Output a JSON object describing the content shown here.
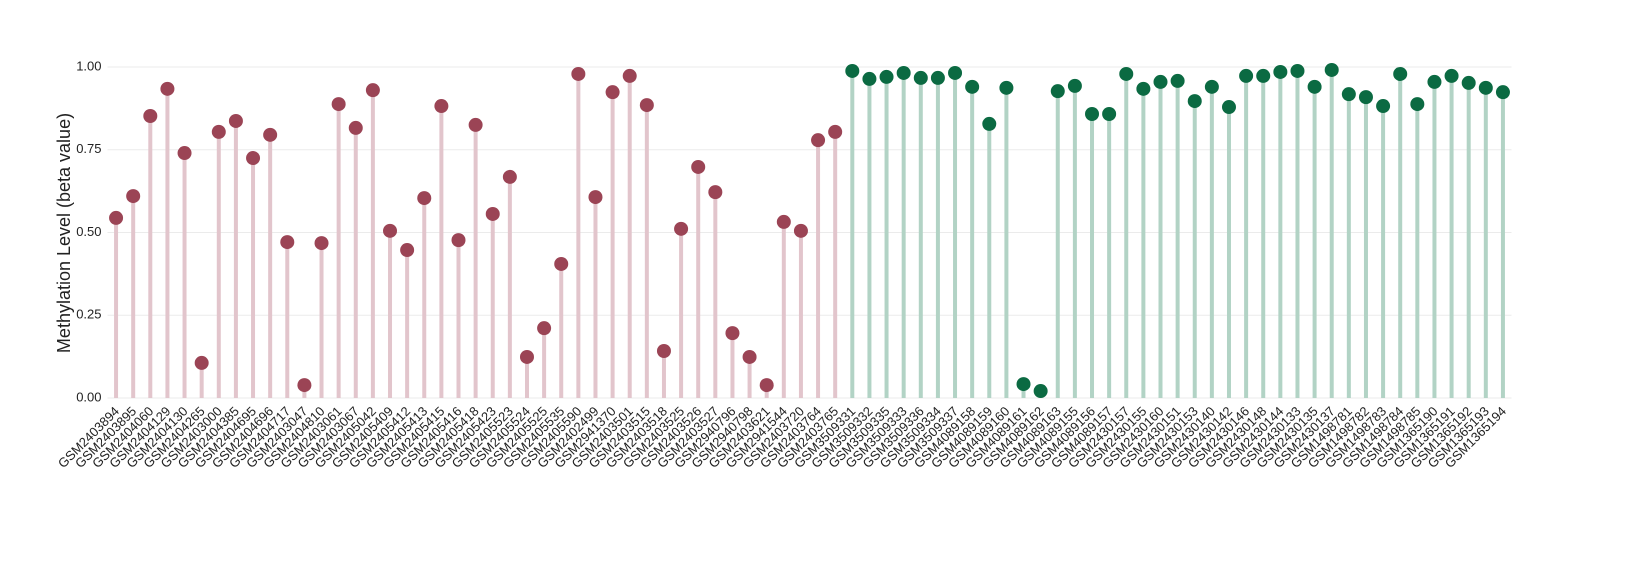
{
  "chart_data": {
    "type": "lollipop",
    "y_label": "Methylation Level (beta value)",
    "ylim": [
      0,
      1
    ],
    "yticks": [
      {
        "value": 0,
        "label": "0.00"
      },
      {
        "value": 0.25,
        "label": "0.25"
      },
      {
        "value": 0.5,
        "label": "0.50"
      },
      {
        "value": 0.75,
        "label": "0.75"
      },
      {
        "value": 1,
        "label": "1.00"
      }
    ],
    "grid": true,
    "categories": [
      "GSM2403894",
      "GSM2403895",
      "GSM2404060",
      "GSM2404129",
      "GSM2404130",
      "GSM2404265",
      "GSM2403000",
      "GSM2404385",
      "GSM2404695",
      "GSM2404696",
      "GSM2404717",
      "GSM2403047",
      "GSM2404810",
      "GSM2403061",
      "GSM2403067",
      "GSM2405042",
      "GSM2405409",
      "GSM2405412",
      "GSM2405413",
      "GSM2405415",
      "GSM2405416",
      "GSM2405418",
      "GSM2405423",
      "GSM2405523",
      "GSM2405524",
      "GSM2405525",
      "GSM2405535",
      "GSM2405590",
      "GSM2402499",
      "GSM2941370",
      "GSM2403501",
      "GSM2403515",
      "GSM2403518",
      "GSM2403525",
      "GSM2403526",
      "GSM2403527",
      "GSM2940796",
      "GSM2940798",
      "GSM2403621",
      "GSM2941544",
      "GSM2403720",
      "GSM2403764",
      "GSM2403765",
      "GSM3509331",
      "GSM3509332",
      "GSM3509335",
      "GSM3509333",
      "GSM3509336",
      "GSM3509334",
      "GSM3509337",
      "GSM4089158",
      "GSM4089159",
      "GSM4089160",
      "GSM4089161",
      "GSM4089162",
      "GSM4089163",
      "GSM4089155",
      "GSM4089156",
      "GSM4089157",
      "GSM2430157",
      "GSM2430155",
      "GSM2430160",
      "GSM2430151",
      "GSM2430153",
      "GSM2430140",
      "GSM2430142",
      "GSM2430146",
      "GSM2430148",
      "GSM2430144",
      "GSM2430133",
      "GSM2430135",
      "GSM2430137",
      "GSM1498781",
      "GSM1498782",
      "GSM1498783",
      "GSM1498784",
      "GSM1498785",
      "GSM1365190",
      "GSM1365191",
      "GSM1365192",
      "GSM1365193",
      "GSM1365194"
    ],
    "series": [
      {
        "color": "#9b4455",
        "stem_color": "#e2c5cc",
        "values": [
          0.544,
          0.61,
          0.852,
          0.934,
          0.74,
          0.106,
          0.804,
          0.837,
          0.725,
          0.795,
          0.471,
          0.039,
          0.468,
          0.888,
          0.816,
          0.93,
          0.505,
          0.447,
          0.604,
          0.882,
          0.477,
          0.825,
          0.556,
          0.668,
          0.124,
          0.211,
          0.405,
          0.979,
          0.607,
          0.924,
          0.973,
          0.885,
          0.142,
          0.511,
          0.698,
          0.622,
          0.196,
          0.124,
          0.039,
          0.532,
          0.505,
          0.779,
          0.804,
          null,
          null,
          null,
          null,
          null,
          null,
          null,
          null,
          null,
          null,
          null,
          null,
          null,
          null,
          null,
          null,
          null,
          null,
          null,
          null,
          null,
          null,
          null,
          null,
          null,
          null,
          null,
          null,
          null,
          null,
          null,
          null,
          null,
          null,
          null,
          null,
          null,
          null,
          null
        ]
      },
      {
        "color": "#0b6a42",
        "stem_color": "#b2d3c5",
        "values": [
          null,
          null,
          null,
          null,
          null,
          null,
          null,
          null,
          null,
          null,
          null,
          null,
          null,
          null,
          null,
          null,
          null,
          null,
          null,
          null,
          null,
          null,
          null,
          null,
          null,
          null,
          null,
          null,
          null,
          null,
          null,
          null,
          null,
          null,
          null,
          null,
          null,
          null,
          null,
          null,
          null,
          null,
          null,
          0.988,
          0.964,
          0.97,
          0.982,
          0.967,
          0.967,
          0.982,
          0.94,
          0.828,
          0.937,
          0.042,
          0.021,
          0.927,
          0.943,
          0.858,
          0.858,
          0.979,
          0.934,
          0.955,
          0.958,
          0.897,
          0.94,
          0.879,
          0.973,
          0.973,
          0.985,
          0.988,
          0.94,
          0.991,
          0.918,
          0.909,
          0.882,
          0.979,
          0.888,
          0.955,
          0.973,
          0.952,
          0.937,
          0.924
        ]
      }
    ]
  }
}
